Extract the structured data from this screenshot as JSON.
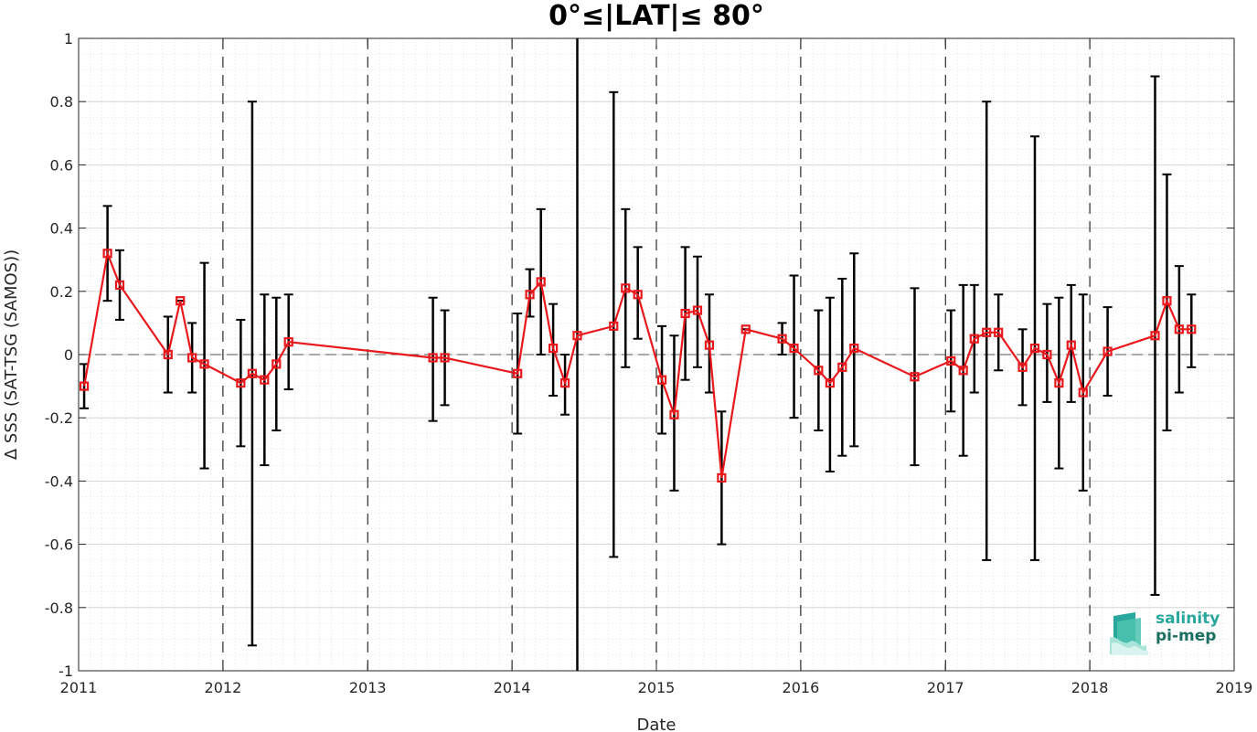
{
  "chart_data": {
    "type": "line",
    "title": "0°≤|LAT|≤ 80°",
    "xlabel": "Date",
    "ylabel": "Δ SSS (SAT-TSG (SAMOS))",
    "xlim": [
      "2011-01-01",
      "2019-01-01"
    ],
    "ylim": [
      -1,
      1
    ],
    "x_ticks": [
      "2011",
      "2012",
      "2013",
      "2014",
      "2015",
      "2016",
      "2017",
      "2018",
      "2019"
    ],
    "y_ticks": [
      "-1",
      "-0.8",
      "-0.6",
      "-0.4",
      "-0.2",
      "0",
      "0.2",
      "0.4",
      "0.6",
      "0.8",
      "1"
    ],
    "grid": true,
    "year_boundaries": [
      "2012",
      "2013",
      "2014",
      "2015",
      "2016",
      "2017",
      "2018"
    ],
    "zero_line": 0,
    "colors": {
      "series": "#e8181c",
      "error_bars": "#000000",
      "grid": "#d9d9d9"
    },
    "series": [
      {
        "points": [
          {
            "date": "2011-01-15",
            "y": -0.1,
            "lo": -0.17,
            "hi": -0.03
          },
          {
            "date": "2011-03-15",
            "y": 0.32,
            "lo": 0.17,
            "hi": 0.47
          },
          {
            "date": "2011-04-15",
            "y": 0.22,
            "lo": 0.11,
            "hi": 0.33
          },
          {
            "date": "2011-08-15",
            "y": 0.0,
            "lo": -0.12,
            "hi": 0.12
          },
          {
            "date": "2011-09-15",
            "y": 0.17,
            "lo": 0.17,
            "hi": 0.17
          },
          {
            "date": "2011-10-15",
            "y": -0.01,
            "lo": -0.12,
            "hi": 0.1
          },
          {
            "date": "2011-11-15",
            "y": -0.03,
            "lo": -0.36,
            "hi": 0.29
          },
          {
            "date": "2012-02-15",
            "y": -0.09,
            "lo": -0.29,
            "hi": 0.11
          },
          {
            "date": "2012-03-15",
            "y": -0.06,
            "lo": -0.92,
            "hi": 0.8
          },
          {
            "date": "2012-04-15",
            "y": -0.08,
            "lo": -0.35,
            "hi": 0.19
          },
          {
            "date": "2012-05-15",
            "y": -0.03,
            "lo": -0.24,
            "hi": 0.18
          },
          {
            "date": "2012-06-15",
            "y": 0.04,
            "lo": -0.11,
            "hi": 0.19
          },
          {
            "date": "2013-06-15",
            "y": -0.01,
            "lo": -0.21,
            "hi": 0.18
          },
          {
            "date": "2013-07-15",
            "y": -0.01,
            "lo": -0.16,
            "hi": 0.14
          },
          {
            "date": "2014-01-15",
            "y": -0.06,
            "lo": -0.25,
            "hi": 0.13
          },
          {
            "date": "2014-02-15",
            "y": 0.19,
            "lo": 0.12,
            "hi": 0.27
          },
          {
            "date": "2014-03-15",
            "y": 0.23,
            "lo": 0.0,
            "hi": 0.46
          },
          {
            "date": "2014-04-15",
            "y": 0.02,
            "lo": -0.13,
            "hi": 0.16
          },
          {
            "date": "2014-05-15",
            "y": -0.09,
            "lo": -0.19,
            "hi": 0.0
          },
          {
            "date": "2014-06-15",
            "y": 0.06,
            "lo": -1.0,
            "hi": 1.0
          },
          {
            "date": "2014-09-15",
            "y": 0.09,
            "lo": -0.64,
            "hi": 0.83
          },
          {
            "date": "2014-10-15",
            "y": 0.21,
            "lo": -0.04,
            "hi": 0.46
          },
          {
            "date": "2014-11-15",
            "y": 0.19,
            "lo": 0.05,
            "hi": 0.34
          },
          {
            "date": "2015-01-15",
            "y": -0.08,
            "lo": -0.25,
            "hi": 0.09
          },
          {
            "date": "2015-02-15",
            "y": -0.19,
            "lo": -0.43,
            "hi": 0.06
          },
          {
            "date": "2015-03-15",
            "y": 0.13,
            "lo": -0.08,
            "hi": 0.34
          },
          {
            "date": "2015-04-15",
            "y": 0.14,
            "lo": -0.04,
            "hi": 0.31
          },
          {
            "date": "2015-05-15",
            "y": 0.03,
            "lo": -0.12,
            "hi": 0.19
          },
          {
            "date": "2015-06-15",
            "y": -0.39,
            "lo": -0.6,
            "hi": -0.18
          },
          {
            "date": "2015-08-15",
            "y": 0.08,
            "lo": 0.08,
            "hi": 0.08
          },
          {
            "date": "2015-11-15",
            "y": 0.05,
            "lo": 0.0,
            "hi": 0.1
          },
          {
            "date": "2015-12-15",
            "y": 0.02,
            "lo": -0.2,
            "hi": 0.25
          },
          {
            "date": "2016-02-15",
            "y": -0.05,
            "lo": -0.24,
            "hi": 0.14
          },
          {
            "date": "2016-03-15",
            "y": -0.09,
            "lo": -0.37,
            "hi": 0.18
          },
          {
            "date": "2016-04-15",
            "y": -0.04,
            "lo": -0.32,
            "hi": 0.24
          },
          {
            "date": "2016-05-15",
            "y": 0.02,
            "lo": -0.29,
            "hi": 0.32
          },
          {
            "date": "2016-10-15",
            "y": -0.07,
            "lo": -0.35,
            "hi": 0.21
          },
          {
            "date": "2017-01-15",
            "y": -0.02,
            "lo": -0.18,
            "hi": 0.14
          },
          {
            "date": "2017-02-15",
            "y": -0.05,
            "lo": -0.32,
            "hi": 0.22
          },
          {
            "date": "2017-03-15",
            "y": 0.05,
            "lo": -0.12,
            "hi": 0.22
          },
          {
            "date": "2017-04-15",
            "y": 0.07,
            "lo": -0.65,
            "hi": 0.8
          },
          {
            "date": "2017-05-15",
            "y": 0.07,
            "lo": -0.05,
            "hi": 0.19
          },
          {
            "date": "2017-07-15",
            "y": -0.04,
            "lo": -0.16,
            "hi": 0.08
          },
          {
            "date": "2017-08-15",
            "y": 0.02,
            "lo": -0.65,
            "hi": 0.69
          },
          {
            "date": "2017-09-15",
            "y": 0.0,
            "lo": -0.15,
            "hi": 0.16
          },
          {
            "date": "2017-10-15",
            "y": -0.09,
            "lo": -0.36,
            "hi": 0.18
          },
          {
            "date": "2017-11-15",
            "y": 0.03,
            "lo": -0.15,
            "hi": 0.22
          },
          {
            "date": "2017-12-15",
            "y": -0.12,
            "lo": -0.43,
            "hi": 0.19
          },
          {
            "date": "2018-02-15",
            "y": 0.01,
            "lo": -0.13,
            "hi": 0.15
          },
          {
            "date": "2018-06-15",
            "y": 0.06,
            "lo": -0.76,
            "hi": 0.88
          },
          {
            "date": "2018-07-15",
            "y": 0.17,
            "lo": -0.24,
            "hi": 0.57
          },
          {
            "date": "2018-08-15",
            "y": 0.08,
            "lo": -0.12,
            "hi": 0.28
          },
          {
            "date": "2018-09-15",
            "y": 0.08,
            "lo": -0.04,
            "hi": 0.19
          }
        ]
      }
    ]
  },
  "logo": {
    "line1": "salinity",
    "line2": "pi-mep"
  }
}
